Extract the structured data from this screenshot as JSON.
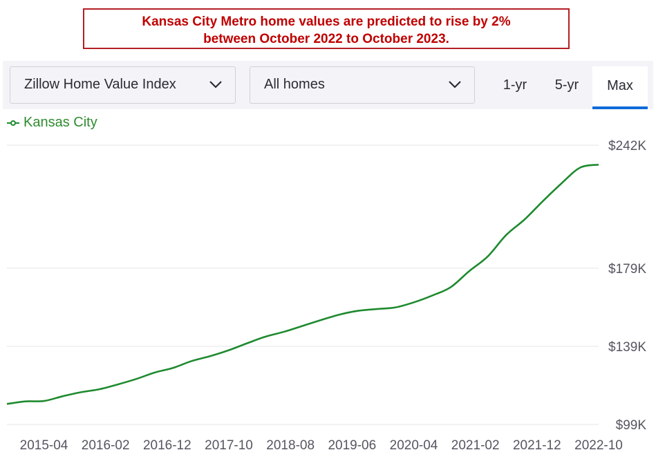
{
  "banner": {
    "line1": "Kansas City Metro home values are predicted to rise by 2%",
    "line2": "between October 2022 to October 2023."
  },
  "toolbar": {
    "index_dropdown": "Zillow Home Value Index",
    "home_type_dropdown": "All homes",
    "range_tabs": [
      "1-yr",
      "5-yr",
      "Max"
    ],
    "selected_range": "Max"
  },
  "colors": {
    "line": "#1e8a2e",
    "banner_text": "#c00000",
    "banner_border": "#b51e24",
    "tab_underline": "#0f6bd8"
  },
  "chart_data": {
    "type": "line",
    "series": [
      {
        "name": "Kansas City",
        "x": [
          "2014-10",
          "2015-01",
          "2015-04",
          "2015-07",
          "2015-10",
          "2016-01",
          "2016-04",
          "2016-07",
          "2016-10",
          "2017-01",
          "2017-04",
          "2017-07",
          "2017-10",
          "2018-01",
          "2018-04",
          "2018-07",
          "2018-10",
          "2019-01",
          "2019-04",
          "2019-07",
          "2019-10",
          "2020-01",
          "2020-04",
          "2020-07",
          "2020-10",
          "2021-01",
          "2021-04",
          "2021-07",
          "2021-10",
          "2022-01",
          "2022-04",
          "2022-07",
          "2022-10"
        ],
        "values": [
          109.5,
          110.8,
          111.0,
          113.4,
          115.5,
          117.0,
          119.5,
          122.3,
          125.6,
          128.0,
          131.5,
          134.0,
          137.0,
          140.6,
          144.0,
          146.5,
          149.5,
          152.5,
          155.3,
          157.2,
          158.1,
          158.9,
          161.5,
          165.0,
          169.3,
          177.5,
          185.0,
          196.0,
          204.0,
          213.5,
          222.5,
          230.5,
          232.0
        ]
      }
    ],
    "x_tick_labels": [
      "2015-04",
      "2016-02",
      "2016-12",
      "2017-10",
      "2018-08",
      "2019-06",
      "2020-04",
      "2021-02",
      "2021-12",
      "2022-10"
    ],
    "y_ticks": [
      99,
      139,
      179,
      242
    ],
    "y_tick_labels": [
      "$99K",
      "$139K",
      "$179K",
      "$242K"
    ],
    "ylim": [
      99,
      242
    ],
    "xlim": [
      "2014-10",
      "2022-10"
    ],
    "grid": true,
    "legend": "top-left"
  }
}
